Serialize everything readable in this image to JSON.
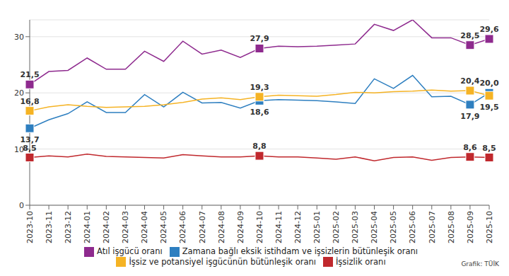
{
  "chart_data": {
    "type": "line",
    "source": "Grafik: TÜİK",
    "categories": [
      "2023-10",
      "2023-11",
      "2023-12",
      "2024-01",
      "2024-02",
      "2024-03",
      "2024-04",
      "2024-05",
      "2024-06",
      "2024-07",
      "2024-08",
      "2024-09",
      "2024-10",
      "2024-11",
      "2024-12",
      "2025-01",
      "2025-02",
      "2025-03",
      "2025-04",
      "2025-05",
      "2025-06",
      "2025-07",
      "2025-08",
      "2025-09",
      "2025-10"
    ],
    "ylim": [
      0,
      33
    ],
    "yticks": [
      0,
      10,
      20,
      30
    ],
    "grid": true,
    "legend": "bottom",
    "data_labels": true,
    "series": [
      {
        "name": "İşsizlik oranı",
        "color": "#c0282d",
        "marker": "square",
        "values": [
          8.5,
          8.8,
          8.6,
          9.1,
          8.7,
          8.6,
          8.5,
          8.4,
          9.0,
          8.8,
          8.6,
          8.6,
          8.8,
          8.6,
          8.6,
          8.4,
          8.2,
          8.6,
          7.9,
          8.5,
          8.6,
          8.0,
          8.5,
          8.6,
          8.5
        ],
        "value_labels": [
          "8,5",
          null,
          null,
          null,
          null,
          null,
          null,
          null,
          null,
          null,
          null,
          null,
          "8,8",
          null,
          null,
          null,
          null,
          null,
          null,
          null,
          null,
          null,
          null,
          "8,6",
          "8,5"
        ]
      },
      {
        "name": "Zamana bağlı eksik istihdam ve işsizlerin bütünleşik oranı",
        "color": "#2e7fc0",
        "marker": "square",
        "values": [
          13.7,
          15.2,
          16.3,
          18.4,
          16.5,
          16.5,
          19.7,
          17.5,
          20.1,
          18.2,
          18.3,
          17.3,
          18.6,
          18.8,
          18.7,
          18.6,
          18.4,
          18.1,
          22.5,
          20.8,
          23.1,
          19.3,
          19.4,
          17.9,
          20.0
        ],
        "value_labels": [
          "13,7",
          null,
          null,
          null,
          null,
          null,
          null,
          null,
          null,
          null,
          null,
          null,
          "18,6",
          null,
          null,
          null,
          null,
          null,
          null,
          null,
          null,
          null,
          null,
          "17,9",
          "20,0"
        ]
      },
      {
        "name": "İşsiz ve potansiyel işgücünün bütünleşik oranı",
        "color": "#f5b324",
        "marker": "square",
        "values": [
          16.8,
          17.5,
          17.9,
          17.6,
          17.4,
          17.5,
          17.6,
          17.9,
          18.3,
          18.9,
          19.1,
          18.8,
          19.3,
          19.6,
          19.5,
          19.4,
          19.7,
          20.1,
          20.0,
          20.2,
          20.3,
          20.5,
          20.3,
          20.4,
          19.5
        ],
        "value_labels": [
          "16,8",
          null,
          null,
          null,
          null,
          null,
          null,
          null,
          null,
          null,
          null,
          null,
          "19,3",
          null,
          null,
          null,
          null,
          null,
          null,
          null,
          null,
          null,
          null,
          "20,4",
          "19,5"
        ]
      },
      {
        "name": "Atıl işgücü oranı",
        "color": "#8e2a8e",
        "marker": "square",
        "values": [
          21.5,
          23.8,
          24.0,
          26.2,
          24.2,
          24.2,
          27.4,
          25.6,
          29.2,
          26.9,
          27.6,
          26.3,
          27.9,
          28.3,
          28.2,
          28.3,
          28.5,
          28.7,
          32.2,
          31.1,
          33.0,
          29.8,
          29.8,
          28.5,
          29.6
        ],
        "value_labels": [
          "21,5",
          null,
          null,
          null,
          null,
          null,
          null,
          null,
          null,
          null,
          null,
          null,
          "27,9",
          null,
          null,
          null,
          null,
          null,
          null,
          null,
          null,
          null,
          null,
          "28,5",
          "29,6"
        ]
      }
    ]
  }
}
